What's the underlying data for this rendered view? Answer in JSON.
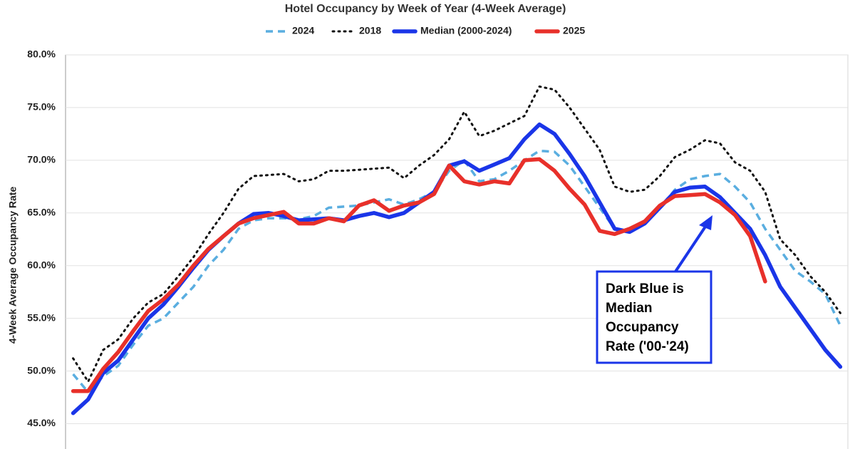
{
  "chart_data": {
    "type": "line",
    "title": "Hotel Occupancy by Week of Year (4-Week Average)",
    "y_label": "4-Week Average Occupancy Rate",
    "categories": [
      null,
      null,
      null,
      null,
      null,
      null,
      null,
      null,
      null,
      null,
      null,
      null,
      null,
      null,
      null,
      null,
      null,
      null,
      null,
      null,
      null,
      null,
      null,
      null,
      null,
      null,
      null,
      null,
      null,
      null,
      null,
      null,
      null,
      null,
      null,
      null,
      null,
      null,
      null,
      null,
      null,
      null,
      null,
      null,
      null,
      null,
      null,
      null,
      null,
      null,
      null,
      null
    ],
    "ylim": [
      42.6,
      80
    ],
    "yticks": [
      {
        "value": 45,
        "label": "45.0%"
      },
      {
        "value": 50,
        "label": "50.0%"
      },
      {
        "value": 55,
        "label": "55.0%"
      },
      {
        "value": 60,
        "label": "60.0%"
      },
      {
        "value": 65,
        "label": "65.0%"
      },
      {
        "value": 70,
        "label": "70.0%"
      },
      {
        "value": 75,
        "label": "75.0%"
      },
      {
        "value": 80,
        "label": "80.0%"
      }
    ],
    "grid": true,
    "series": [
      {
        "name": "2024",
        "color": "#5aaee0",
        "style": "dashed",
        "values": [
          49.7,
          48.0,
          49.5,
          50.5,
          52.5,
          54.3,
          55.0,
          56.5,
          58.0,
          60.0,
          61.5,
          63.5,
          64.3,
          64.5,
          64.5,
          64.4,
          64.7,
          65.5,
          65.6,
          65.7,
          66.0,
          66.3,
          65.8,
          66.3,
          67.0,
          69.0,
          70.0,
          68.0,
          68.2,
          69.0,
          70.0,
          70.9,
          70.8,
          69.5,
          67.5,
          65.5,
          63.5,
          63.4,
          64.0,
          65.5,
          67.2,
          68.2,
          68.5,
          68.7,
          67.5,
          66.0,
          63.5,
          61.5,
          59.5,
          58.5,
          57.3,
          54.3
        ]
      },
      {
        "name": "2018",
        "color": "#111111",
        "style": "dotted",
        "values": [
          51.2,
          49.0,
          52.0,
          53.0,
          55.0,
          56.5,
          57.3,
          59.0,
          60.8,
          63.0,
          65.0,
          67.3,
          68.5,
          68.6,
          68.7,
          68.0,
          68.2,
          69.0,
          69.0,
          69.1,
          69.2,
          69.3,
          68.3,
          69.5,
          70.5,
          72.0,
          74.6,
          72.3,
          72.8,
          73.5,
          74.2,
          77.0,
          76.7,
          75.0,
          73.0,
          71.0,
          67.5,
          67.0,
          67.2,
          68.5,
          70.3,
          71.0,
          71.9,
          71.6,
          69.8,
          69.0,
          67.0,
          62.5,
          61.0,
          59.0,
          57.5,
          55.5
        ]
      },
      {
        "name": "Median (2000-2024)",
        "color": "#1a35e8",
        "style": "solid",
        "values": [
          46.0,
          47.3,
          49.8,
          51.0,
          53.0,
          55.0,
          56.3,
          58.0,
          59.8,
          61.5,
          62.8,
          64.0,
          64.9,
          65.0,
          64.7,
          64.3,
          64.4,
          64.5,
          64.3,
          64.7,
          65.0,
          64.6,
          65.0,
          66.0,
          67.0,
          69.5,
          69.9,
          69.0,
          69.6,
          70.2,
          72.0,
          73.4,
          72.5,
          70.6,
          68.5,
          66.0,
          63.5,
          63.2,
          64.0,
          65.5,
          67.0,
          67.4,
          67.5,
          66.5,
          65.0,
          63.5,
          61.0,
          58.0,
          56.0,
          54.0,
          52.0,
          50.4
        ]
      },
      {
        "name": "2025",
        "color": "#e8302a",
        "style": "solid",
        "values": [
          48.1,
          48.1,
          50.2,
          51.8,
          53.8,
          55.7,
          56.8,
          58.2,
          60.0,
          61.6,
          62.8,
          64.0,
          64.5,
          64.8,
          65.1,
          64.0,
          64.0,
          64.5,
          64.2,
          65.7,
          66.2,
          65.2,
          65.7,
          66.0,
          66.8,
          69.5,
          68.0,
          67.7,
          68.0,
          67.8,
          70.0,
          70.1,
          69.0,
          67.3,
          65.8,
          63.3,
          63.0,
          63.5,
          64.2,
          65.7,
          66.6,
          66.7,
          66.8,
          66.0,
          64.8,
          62.8,
          58.5,
          null,
          null,
          null,
          null,
          null
        ]
      }
    ],
    "annotation_lines": [
      "Dark Blue is",
      "Median",
      "Occupancy",
      "Rate ('00-'24)"
    ]
  }
}
